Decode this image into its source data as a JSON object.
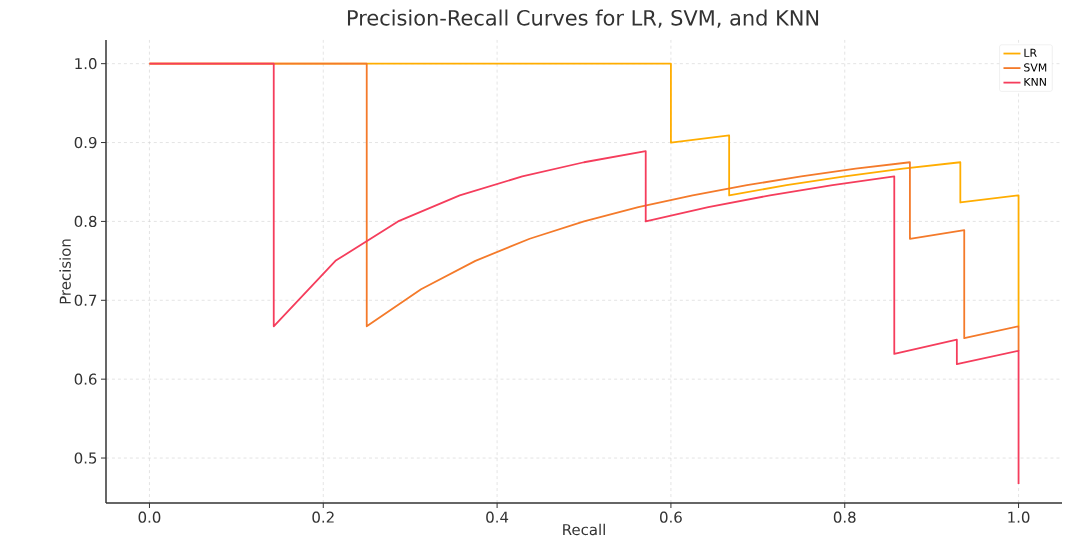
{
  "chart_data": {
    "type": "line",
    "title": "Precision-Recall Curves for LR, SVM, and KNN",
    "xlabel": "Recall",
    "ylabel": "Precision",
    "xlim": [
      -0.05,
      1.05
    ],
    "ylim": [
      0.443,
      1.03
    ],
    "xticks": [
      {
        "value": 0,
        "label": "0.0"
      },
      {
        "value": 0.2,
        "label": "0.2"
      },
      {
        "value": 0.4,
        "label": "0.4"
      },
      {
        "value": 0.6,
        "label": "0.6"
      },
      {
        "value": 0.8,
        "label": "0.8"
      },
      {
        "value": 1,
        "label": "1.0"
      }
    ],
    "yticks": [
      {
        "value": 0.5,
        "label": "0.5"
      },
      {
        "value": 0.6,
        "label": "0.6"
      },
      {
        "value": 0.7,
        "label": "0.7"
      },
      {
        "value": 0.8,
        "label": "0.8"
      },
      {
        "value": 0.9,
        "label": "0.9"
      },
      {
        "value": 1,
        "label": "1.0"
      }
    ],
    "grid": true,
    "legend": "top right",
    "marker": "none",
    "line_style": "solid",
    "series": [
      {
        "name": "LR",
        "color": "#ffad00",
        "x": [
          0,
          0.6,
          0.6,
          0.667,
          0.667,
          0.733,
          0.8,
          0.867,
          0.933,
          0.933,
          1.0,
          1.0
        ],
        "values": [
          1,
          1,
          0.9,
          0.909,
          0.833,
          0.846,
          0.857,
          0.867,
          0.875,
          0.824,
          0.833,
          0.667
        ]
      },
      {
        "name": "SVM",
        "color": "#f47a2a",
        "x": [
          0,
          0.25,
          0.25,
          0.3125,
          0.375,
          0.4375,
          0.5,
          0.5625,
          0.625,
          0.6875,
          0.75,
          0.8125,
          0.875,
          0.875,
          0.9375,
          0.9375,
          1.0,
          1.0
        ],
        "values": [
          1,
          1,
          0.667,
          0.714,
          0.75,
          0.778,
          0.8,
          0.818,
          0.833,
          0.846,
          0.857,
          0.867,
          0.875,
          0.778,
          0.789,
          0.652,
          0.667,
          0.636
        ]
      },
      {
        "name": "KNN",
        "color": "#f53d5c",
        "x": [
          0,
          0.143,
          0.143,
          0.214,
          0.286,
          0.357,
          0.429,
          0.5,
          0.571,
          0.571,
          0.643,
          0.714,
          0.786,
          0.857,
          0.857,
          0.929,
          0.929,
          1.0,
          1.0
        ],
        "values": [
          1,
          1,
          0.667,
          0.75,
          0.8,
          0.833,
          0.857,
          0.875,
          0.889,
          0.8,
          0.818,
          0.833,
          0.846,
          0.857,
          0.632,
          0.65,
          0.619,
          0.636,
          0.467
        ]
      }
    ]
  }
}
